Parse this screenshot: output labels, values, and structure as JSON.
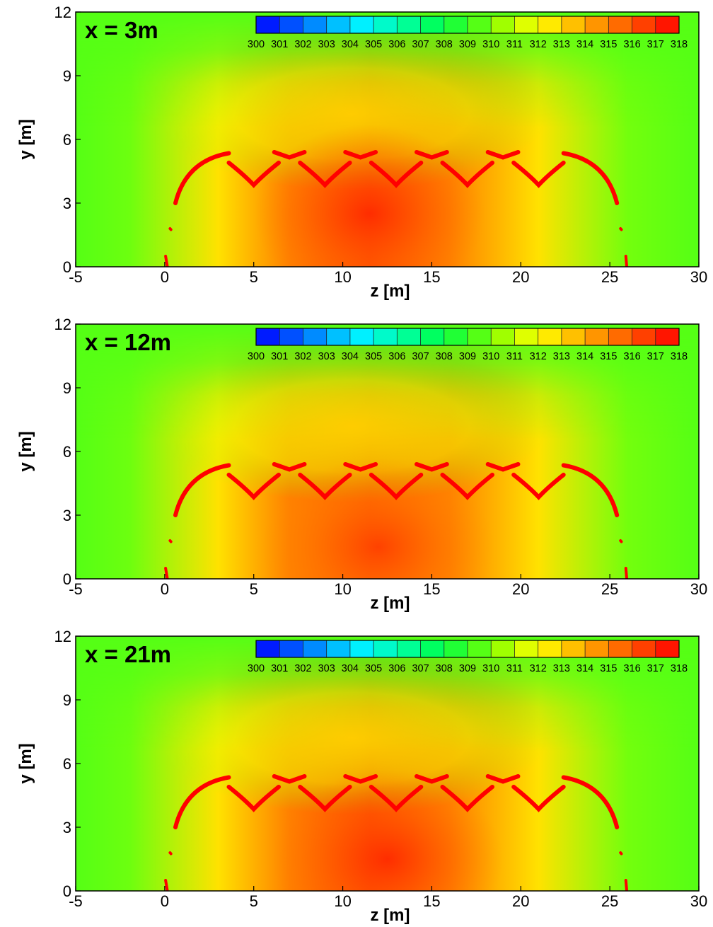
{
  "chart_data": {
    "type": "heatmap",
    "shared": {
      "xlabel": "z [m]",
      "ylabel": "y [m]",
      "xlim": [
        -5,
        30
      ],
      "ylim": [
        0,
        12
      ],
      "xticks": [
        -5,
        0,
        5,
        10,
        15,
        20,
        25,
        30
      ],
      "yticks": [
        0,
        3,
        6,
        9,
        12
      ],
      "colorbar": {
        "min": 300,
        "max": 318,
        "ticks": [
          300,
          301,
          302,
          303,
          304,
          305,
          306,
          307,
          308,
          309,
          310,
          311,
          312,
          313,
          314,
          315,
          316,
          317,
          318
        ],
        "colors": [
          "#0000ff",
          "#0050ff",
          "#00a8ff",
          "#00f0ff",
          "#00ffb0",
          "#00ff60",
          "#30ff20",
          "#a0ff00",
          "#ffff00",
          "#ffc000",
          "#ff8000",
          "#ff4000",
          "#ff0000"
        ]
      },
      "ambient_value": 309.5,
      "plume_center_z": 11.5,
      "structure_value": 318
    },
    "panels": [
      {
        "label": "x = 3m",
        "hotspot": {
          "z": 11.5,
          "y": 2.5,
          "value": 317
        }
      },
      {
        "label": "x = 12m",
        "hotspot": {
          "z": 12,
          "y": 1.5,
          "value": 316.5
        }
      },
      {
        "label": "x = 21m",
        "hotspot": {
          "z": 12.5,
          "y": 1.5,
          "value": 317
        }
      }
    ]
  }
}
